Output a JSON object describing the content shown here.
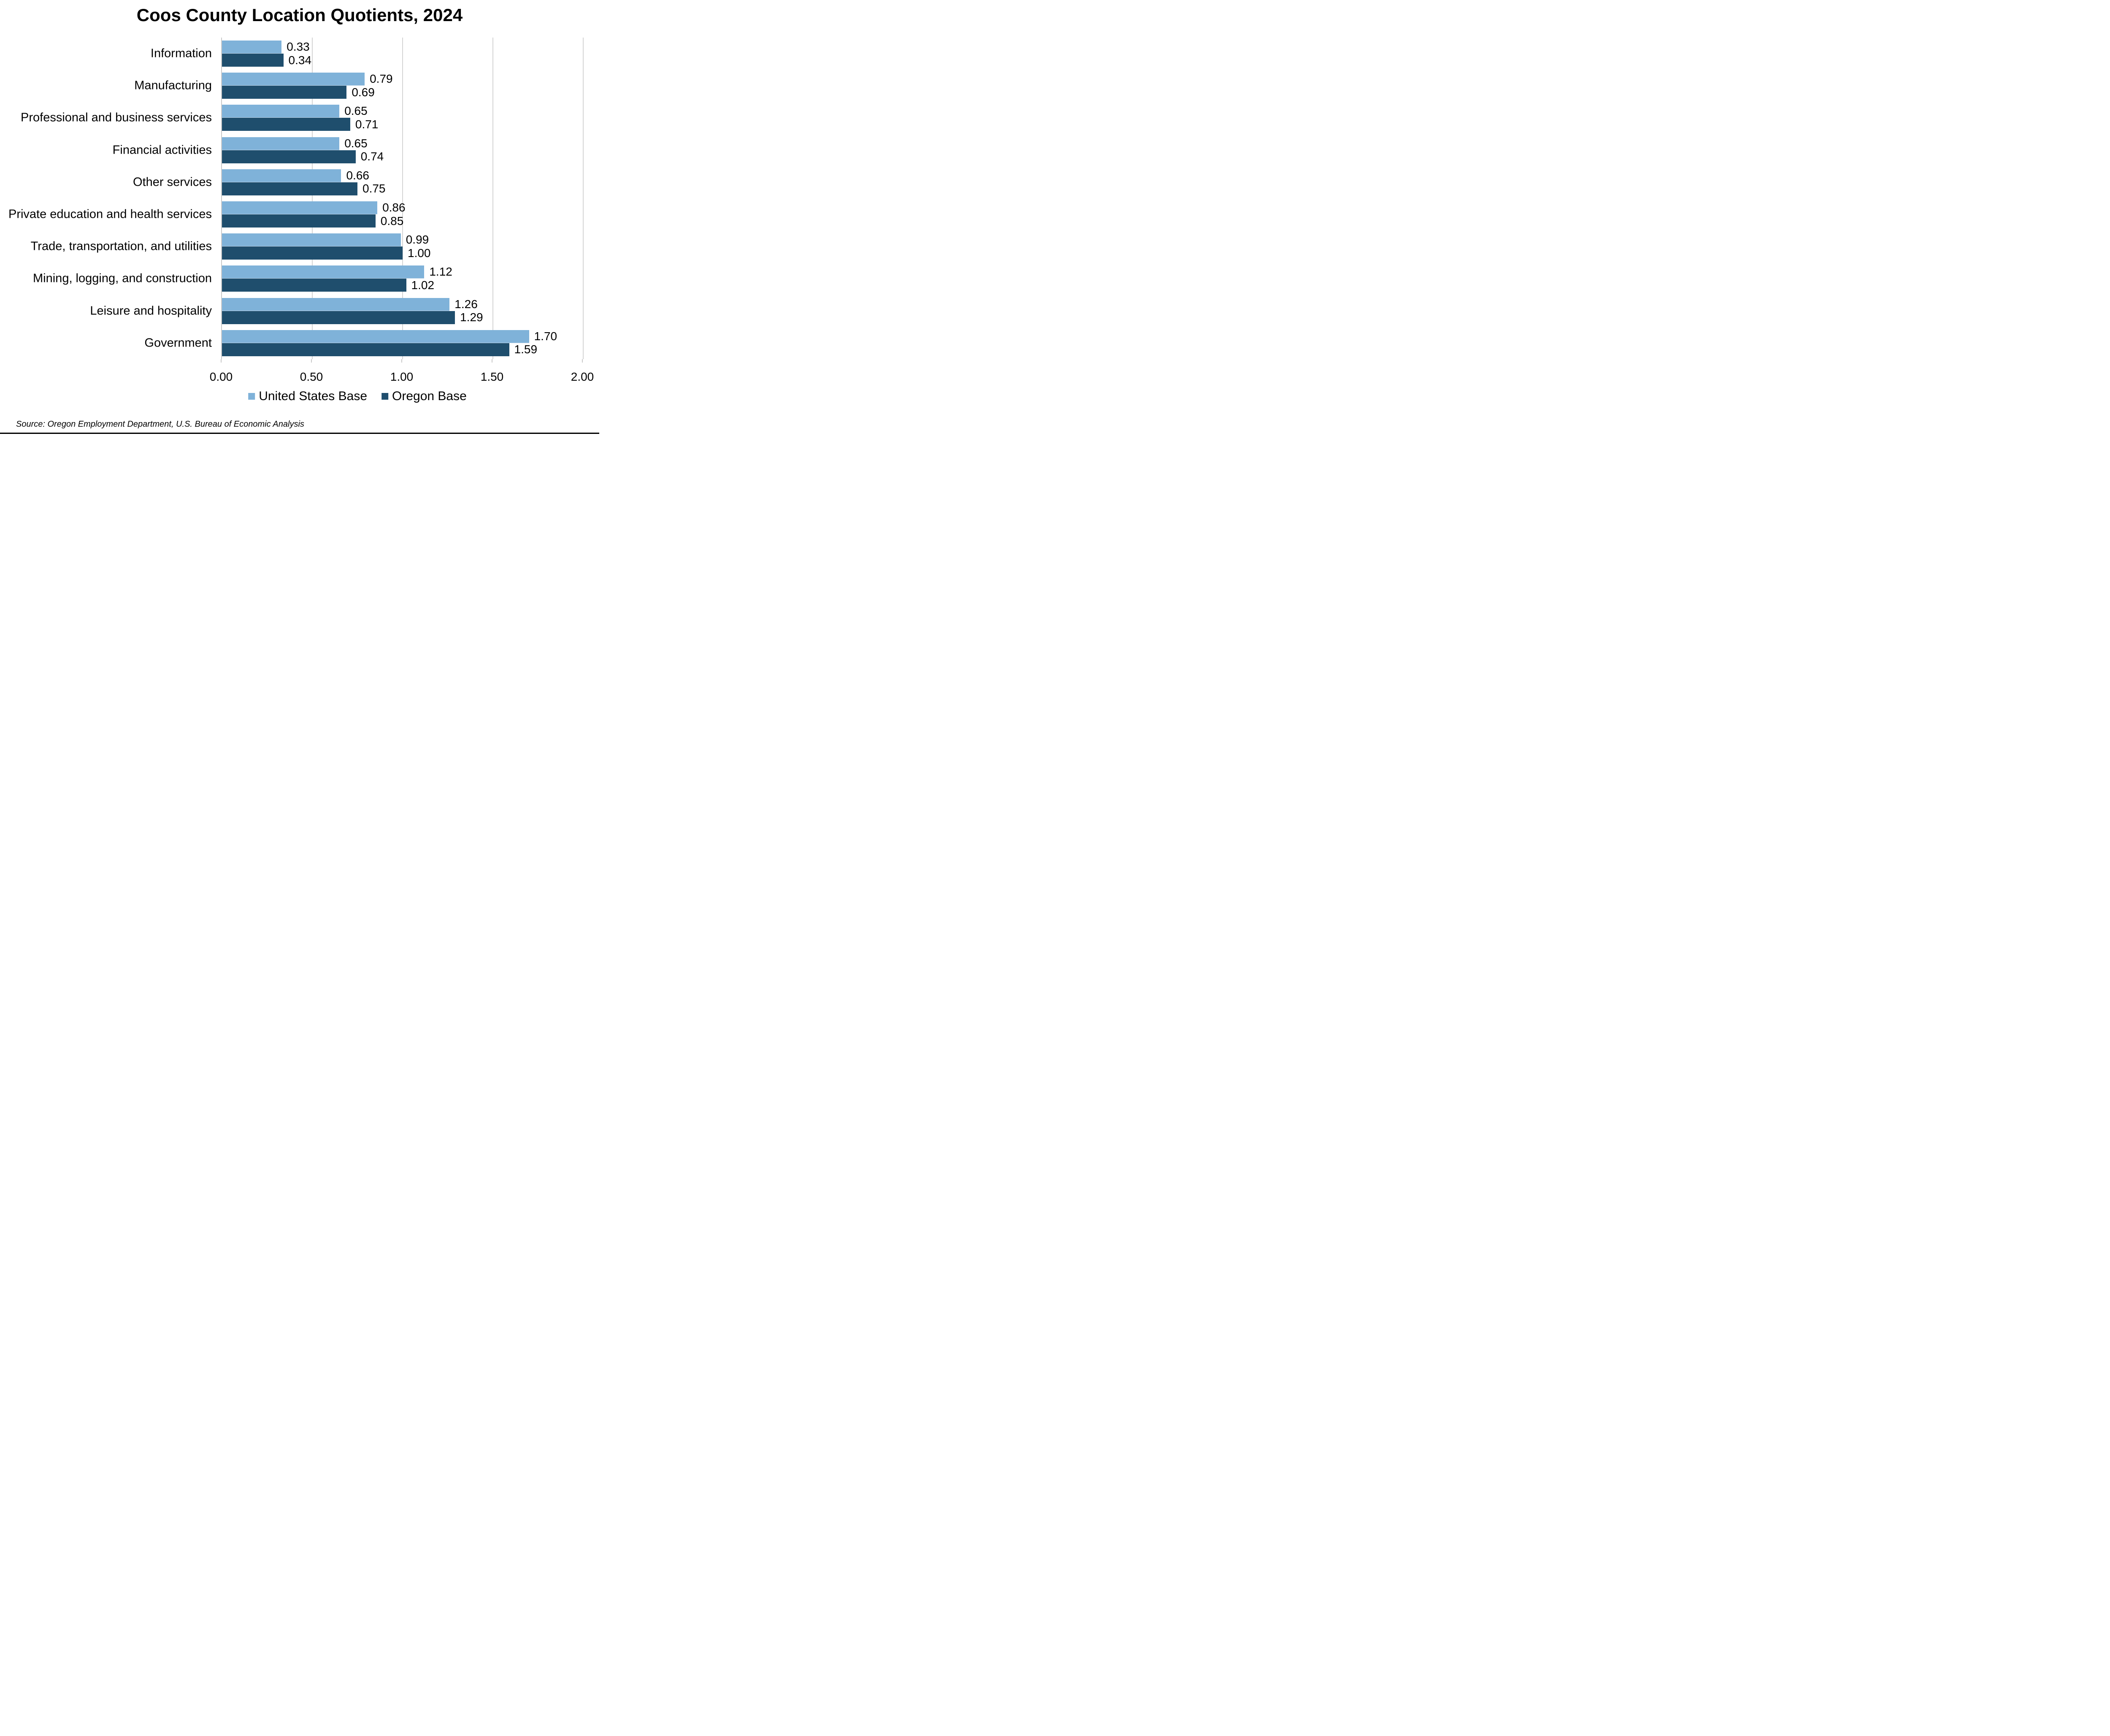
{
  "chart_data": {
    "type": "bar",
    "orientation": "horizontal",
    "title": "Coos County Location Quotients, 2024",
    "categories": [
      "Information",
      "Manufacturing",
      "Professional and business services",
      "Financial activities",
      "Other services",
      "Private education and health services",
      "Trade, transportation, and utilities",
      "Mining, logging, and construction",
      "Leisure and hospitality",
      "Government"
    ],
    "series": [
      {
        "name": "United States Base",
        "color": "#7FB2D9",
        "values": [
          0.33,
          0.79,
          0.65,
          0.65,
          0.66,
          0.86,
          0.99,
          1.12,
          1.26,
          1.7
        ],
        "labels": [
          "0.33",
          "0.79",
          "0.65",
          "0.65",
          "0.66",
          "0.86",
          "0.99",
          "1.12",
          "1.26",
          "1.70"
        ]
      },
      {
        "name": "Oregon Base",
        "color": "#1F4E6D",
        "values": [
          0.34,
          0.69,
          0.71,
          0.74,
          0.75,
          0.85,
          1.0,
          1.02,
          1.29,
          1.59
        ],
        "labels": [
          "0.34",
          "0.69",
          "0.71",
          "0.74",
          "0.75",
          "0.85",
          "1.00",
          "1.02",
          "1.29",
          "1.59"
        ]
      }
    ],
    "xlim": [
      0,
      2
    ],
    "xticks": [
      "0.00",
      "0.50",
      "1.00",
      "1.50",
      "2.00"
    ],
    "xtick_values": [
      0,
      0.5,
      1.0,
      1.5,
      2.0
    ],
    "grid": "vertical",
    "legend_position": "bottom",
    "value_labels": "outside-end"
  },
  "source_note": "Source: Oregon Employment Department, U.S. Bureau of Economic Analysis"
}
